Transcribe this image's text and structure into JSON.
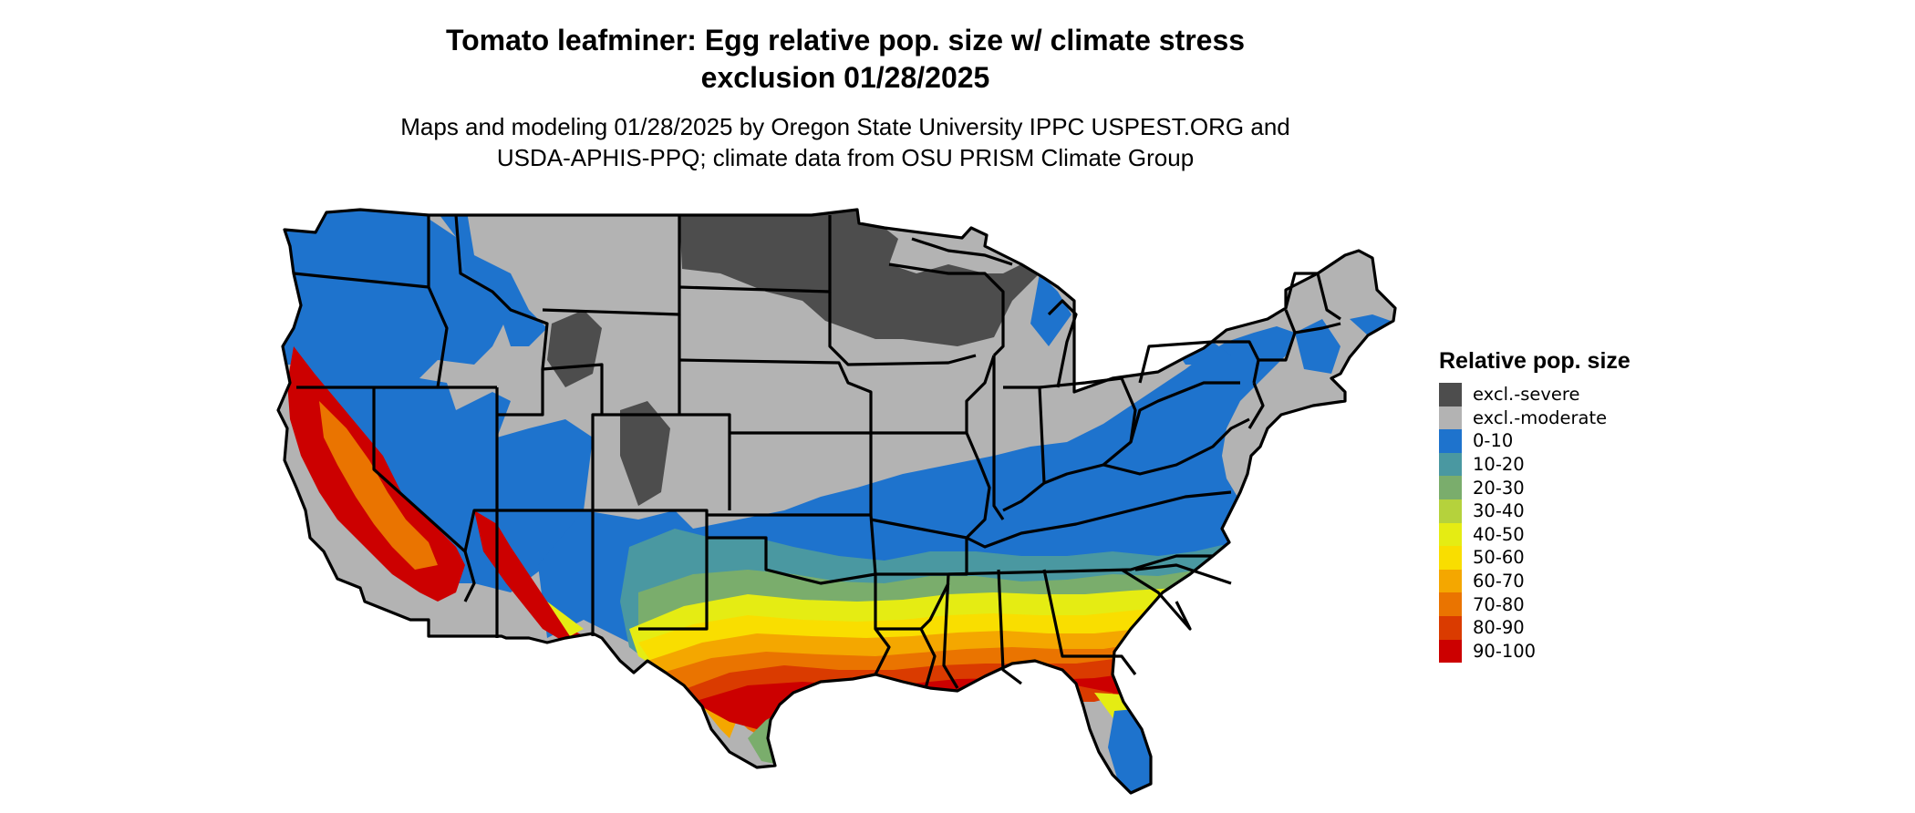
{
  "header": {
    "title_line1": "Tomato leafminer: Egg relative pop. size w/ climate stress",
    "title_line2": "exclusion 01/28/2025",
    "subtitle_line1": "Maps and modeling 01/28/2025 by Oregon State University IPPC USPEST.ORG and",
    "subtitle_line2": "USDA-APHIS-PPQ; climate data from OSU PRISM Climate Group"
  },
  "legend": {
    "title": "Relative pop. size",
    "items": [
      {
        "label": "excl.-severe",
        "color": "#4d4d4d"
      },
      {
        "label": "excl.-moderate",
        "color": "#b3b3b3"
      },
      {
        "label": "0-10",
        "color": "#1e73cd"
      },
      {
        "label": "10-20",
        "color": "#4a98a1"
      },
      {
        "label": "20-30",
        "color": "#7aad6c"
      },
      {
        "label": "30-40",
        "color": "#b5d23c"
      },
      {
        "label": "40-50",
        "color": "#e5ec13"
      },
      {
        "label": "50-60",
        "color": "#f9de00"
      },
      {
        "label": "60-70",
        "color": "#f4a700"
      },
      {
        "label": "70-80",
        "color": "#ea7400"
      },
      {
        "label": "80-90",
        "color": "#da3b00"
      },
      {
        "label": "90-100",
        "color": "#cc0000"
      }
    ]
  }
}
